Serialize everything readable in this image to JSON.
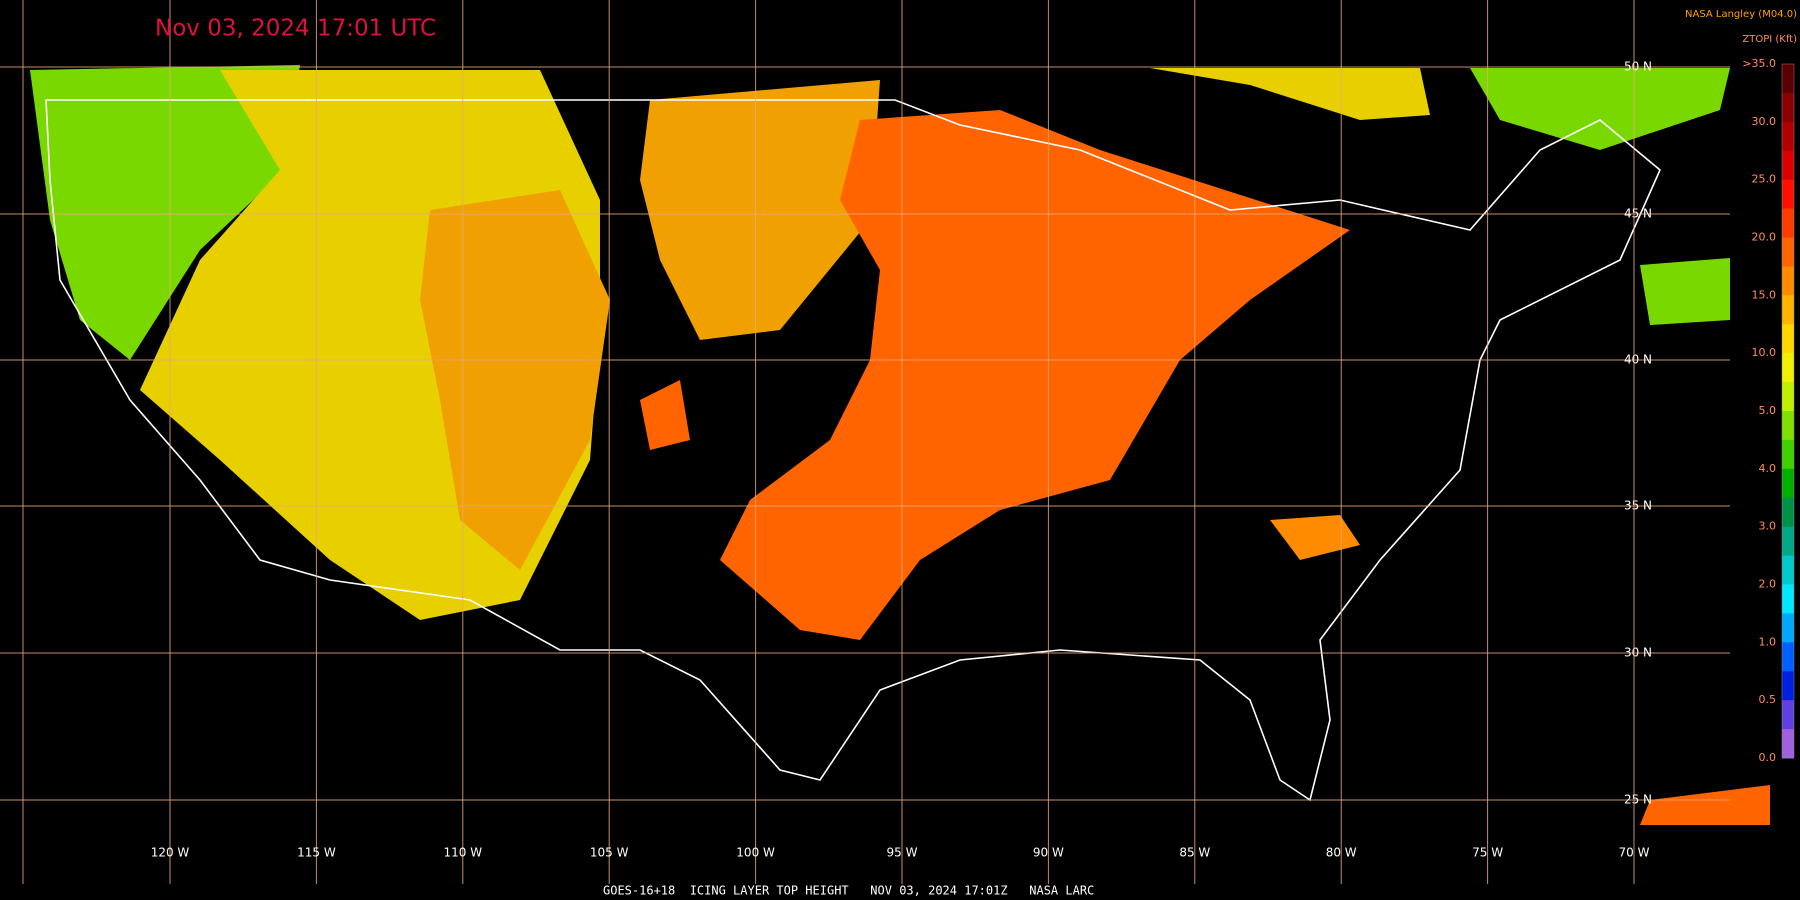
{
  "header": {
    "title": "Nov 03, 2024 17:01 UTC",
    "credit": "NASA Langley (M04.0)"
  },
  "colorbar": {
    "title": "ZTOPI (Kft)",
    "labels": [
      ">35.0",
      "30.0",
      "25.0",
      "20.0",
      "15.0",
      "10.0",
      "5.0",
      "4.0",
      "3.0",
      "2.0",
      "1.0",
      "0.5",
      "0.0"
    ],
    "colors": [
      "#5a0000",
      "#8b0000",
      "#b00000",
      "#d80000",
      "#ff1000",
      "#ff3c00",
      "#ff6400",
      "#ff8c00",
      "#ffb400",
      "#ffd800",
      "#f0f000",
      "#c0f000",
      "#80e000",
      "#40d000",
      "#00b000",
      "#009048",
      "#00a888",
      "#00c8c8",
      "#00e8ff",
      "#00a8ff",
      "#0060ff",
      "#0020e0",
      "#6040e0",
      "#a060e0"
    ]
  },
  "grid": {
    "latitudes": [
      "50 N",
      "45 N",
      "40 N",
      "35 N",
      "30 N",
      "25 N"
    ],
    "longitudes": [
      "120 W",
      "115 W",
      "110 W",
      "105 W",
      "100 W",
      "95 W",
      "90 W",
      "85 W",
      "80 W",
      "75 W",
      "70 W"
    ]
  },
  "footer": "GOES-16+18  ICING LAYER TOP HEIGHT   NOV 03, 2024 17:01Z   NASA LARC"
}
